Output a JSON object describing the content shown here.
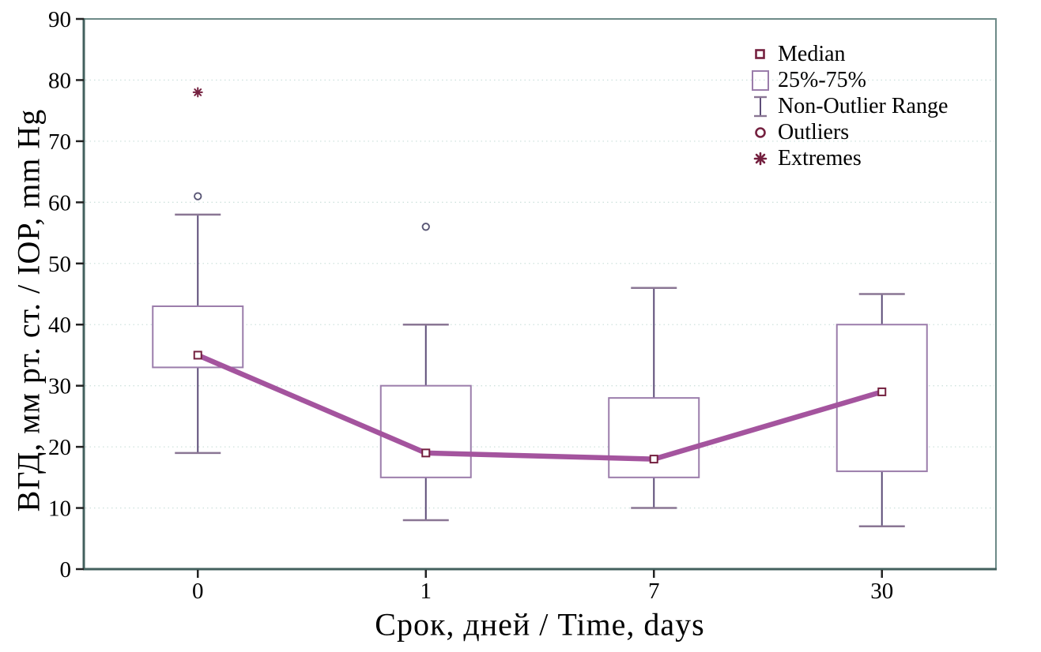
{
  "figure": {
    "background": "#ffffff"
  },
  "chart_data": {
    "type": "box",
    "title": "",
    "xlabel": "Срок, дней / Time, days",
    "ylabel": "ВГД, мм рт. ст. / IOP, mm Hg",
    "ylim": [
      0,
      90
    ],
    "yticks": [
      0,
      10,
      20,
      30,
      40,
      50,
      60,
      70,
      80,
      90
    ],
    "grid": "horizontal-dotted",
    "legend_position": "top-right-inside",
    "categories": [
      "0",
      "1",
      "7",
      "30"
    ],
    "groups": [
      {
        "category": "0",
        "median": 35,
        "q1": 33,
        "q3": 43,
        "whisker_low": 19,
        "whisker_high": 58,
        "outliers": [
          61
        ],
        "extremes": [
          78
        ]
      },
      {
        "category": "1",
        "median": 19,
        "q1": 15,
        "q3": 30,
        "whisker_low": 8,
        "whisker_high": 40,
        "outliers": [
          56
        ],
        "extremes": []
      },
      {
        "category": "7",
        "median": 18,
        "q1": 15,
        "q3": 28,
        "whisker_low": 10,
        "whisker_high": 46,
        "outliers": [],
        "extremes": []
      },
      {
        "category": "30",
        "median": 29,
        "q1": 16,
        "q3": 40,
        "whisker_low": 7,
        "whisker_high": 45,
        "outliers": [],
        "extremes": []
      }
    ],
    "median_connecting_line": true
  },
  "legend": {
    "items": [
      {
        "label": "Median",
        "marker": "median-square"
      },
      {
        "label": "25%-75%",
        "marker": "box"
      },
      {
        "label": "Non-Outlier Range",
        "marker": "whisker"
      },
      {
        "label": "Outliers",
        "marker": "circle"
      },
      {
        "label": "Extremes",
        "marker": "asterisk"
      }
    ]
  },
  "colors": {
    "frame": "#6d8a88",
    "axis": "#43605e",
    "grid": "#cfe2de",
    "tick": "#222222",
    "text": "#000000",
    "box_border": "#9b7dab",
    "whisker_stem": "#5d4d78",
    "whisker_cap": "#8a7694",
    "median_line": "#a4549e",
    "maroon": "#74203f",
    "outlier_stroke": "#585574",
    "marker_fill": "#ffffff"
  }
}
